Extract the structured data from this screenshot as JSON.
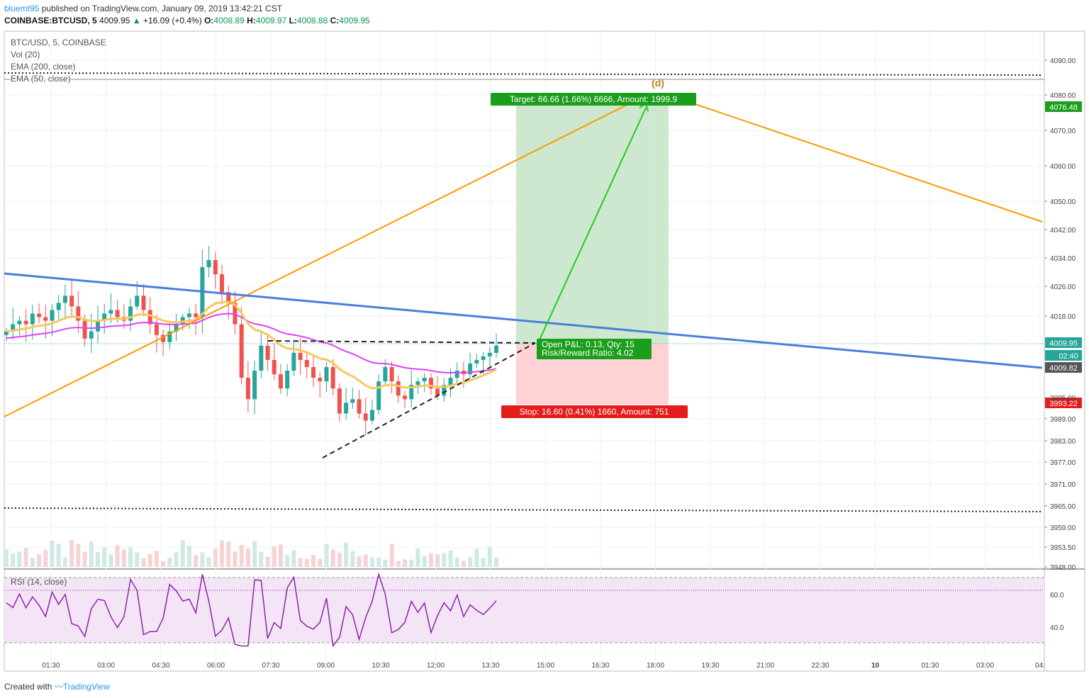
{
  "header": {
    "user": "bluemt95",
    "published": "published on TradingView.com, January 09, 2019 13:42:21 CST"
  },
  "ticker": {
    "symbol": "COINBASE:BTCUSD, 5",
    "last": "4009.95",
    "change": "+16.09 (+0.4%)",
    "o_label": "O:",
    "o": "4008.89",
    "h_label": "H:",
    "h": "4009.97",
    "l_label": "L:",
    "l": "4008.88",
    "c_label": "C:",
    "c": "4009.95",
    "up_icon": "triangle-up-icon"
  },
  "legend": {
    "main": "BTC/USD, 5, COINBASE",
    "vol": "Vol (20)",
    "ema200": "EMA (200, close)",
    "ema50": "EMA (50, close)",
    "rsi": "RSI (14, close)"
  },
  "position": {
    "target_label": "Target: 66.66 (1.66%) 6666, Amount: 1999.9",
    "stop_label": "Stop: 16.60 (0.41%) 1660, Amount: 751",
    "pnl_label": "Open P&L: 0.13, Qty: 15",
    "rr_label": "Risk/Reward Ratio: 4.02",
    "wave_label": "(d)"
  },
  "price_tags": {
    "target": "4076.48",
    "last": "4009.95",
    "countdown": "02:40",
    "blue_line": "4009.82",
    "stop": "3993.22"
  },
  "colors": {
    "up": "#26a69a",
    "down": "#ef5350",
    "ema50": "#f6c85f",
    "ema200": "#e040fb",
    "orange": "#ff9800",
    "blue": "#4a7fdc",
    "target_zone": "#c8e6c9",
    "stop_zone": "#ffcdd2",
    "rsi_line": "#8e24aa",
    "rsi_band": "#f3e5f5"
  },
  "chart_data": {
    "type": "candlestick",
    "symbol": "BTC/USD",
    "interval": "5",
    "x_ticks": [
      "01:30",
      "03:00",
      "04:30",
      "06:00",
      "07:30",
      "09:00",
      "10:30",
      "12:00",
      "13:30",
      "15:00",
      "16:30",
      "18:00",
      "19:30",
      "21:00",
      "22:30",
      "10",
      "01:30",
      "03:00",
      "04:"
    ],
    "y_ticks": [
      "4090.00",
      "4080.00",
      "4070.00",
      "4060.00",
      "4050.00",
      "4042.00",
      "4034.00",
      "4026.00",
      "4018.00",
      "3995.00",
      "3989.00",
      "3983.00",
      "3977.00",
      "3971.00",
      "3965.00",
      "3959.00",
      "3953.50",
      "3948.00"
    ],
    "rsi_ticks": [
      "60.0",
      "40.0"
    ],
    "close_series": [
      4014,
      4016,
      4017,
      4016,
      4019,
      4018,
      4017,
      4020,
      4022,
      4024,
      4021,
      4017,
      4012,
      4014,
      4017,
      4019,
      4020,
      4018,
      4017,
      4021,
      4024,
      4020,
      4016,
      4013,
      4011,
      4014,
      4016,
      4018,
      4019,
      4018,
      4032,
      4034,
      4030,
      4025,
      4022,
      4016,
      4001,
      3995,
      4003,
      4010,
      4006,
      4002,
      3998,
      4003,
      4008,
      4006,
      4004,
      4001,
      4000,
      4004,
      3998,
      3991,
      3994,
      3995,
      3991,
      3989,
      3992,
      4000,
      4004,
      4000,
      3996,
      3995,
      3999,
      4000,
      4001,
      3998,
      3996,
      3999,
      4001,
      4003,
      4002,
      4005,
      4006,
      4007,
      4008,
      4010
    ],
    "price_range": [
      3946,
      4097
    ],
    "rsi_range": [
      20,
      80
    ],
    "levels": {
      "resistance_dotted": 4086.0,
      "support_dotted": 3964.0,
      "target": 4076.48,
      "entry": 4009.95,
      "stop": 3993.22
    }
  }
}
